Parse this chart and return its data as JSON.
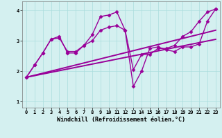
{
  "xlabel": "Windchill (Refroidissement éolien,°C)",
  "bg_color": "#d4f0f0",
  "line_color": "#990099",
  "xlim": [
    -0.5,
    23.5
  ],
  "ylim": [
    0.8,
    4.3
  ],
  "xticks": [
    0,
    1,
    2,
    3,
    4,
    5,
    6,
    7,
    8,
    9,
    10,
    11,
    12,
    13,
    14,
    15,
    16,
    17,
    18,
    19,
    20,
    21,
    22,
    23
  ],
  "yticks": [
    1,
    2,
    3,
    4
  ],
  "series": [
    {
      "x": [
        0,
        1,
        2,
        3,
        4,
        5,
        6,
        7,
        8,
        9,
        10,
        11,
        12,
        13,
        14,
        15,
        16,
        17,
        18,
        19,
        20,
        21,
        22,
        23
      ],
      "y": [
        1.8,
        2.2,
        2.6,
        3.05,
        3.1,
        2.65,
        2.65,
        2.85,
        3.0,
        3.35,
        3.45,
        3.5,
        3.35,
        2.05,
        2.55,
        2.55,
        2.75,
        2.75,
        2.85,
        3.15,
        3.3,
        3.65,
        3.95,
        4.05
      ],
      "marker": "D",
      "markersize": 2.5,
      "linewidth": 1.0
    },
    {
      "x": [
        0,
        1,
        2,
        3,
        4,
        5,
        6,
        7,
        8,
        9,
        10,
        11,
        12,
        13,
        14,
        15,
        16,
        17,
        18,
        19,
        20,
        21,
        22,
        23
      ],
      "y": [
        1.8,
        2.2,
        2.6,
        3.05,
        3.15,
        2.6,
        2.6,
        2.85,
        3.2,
        3.8,
        3.85,
        3.95,
        3.35,
        1.5,
        2.0,
        2.75,
        2.8,
        2.7,
        2.65,
        2.8,
        2.8,
        2.9,
        3.65,
        4.05
      ],
      "marker": "D",
      "markersize": 2.5,
      "linewidth": 1.0
    },
    {
      "x": [
        0,
        23
      ],
      "y": [
        1.8,
        3.35
      ],
      "marker": null,
      "markersize": 0,
      "linewidth": 1.4
    },
    {
      "x": [
        0,
        23
      ],
      "y": [
        1.8,
        3.05
      ],
      "marker": null,
      "markersize": 0,
      "linewidth": 1.4
    }
  ],
  "grid_color": "#aadddd",
  "tick_fontsize": 5.0,
  "label_fontsize": 6.0
}
